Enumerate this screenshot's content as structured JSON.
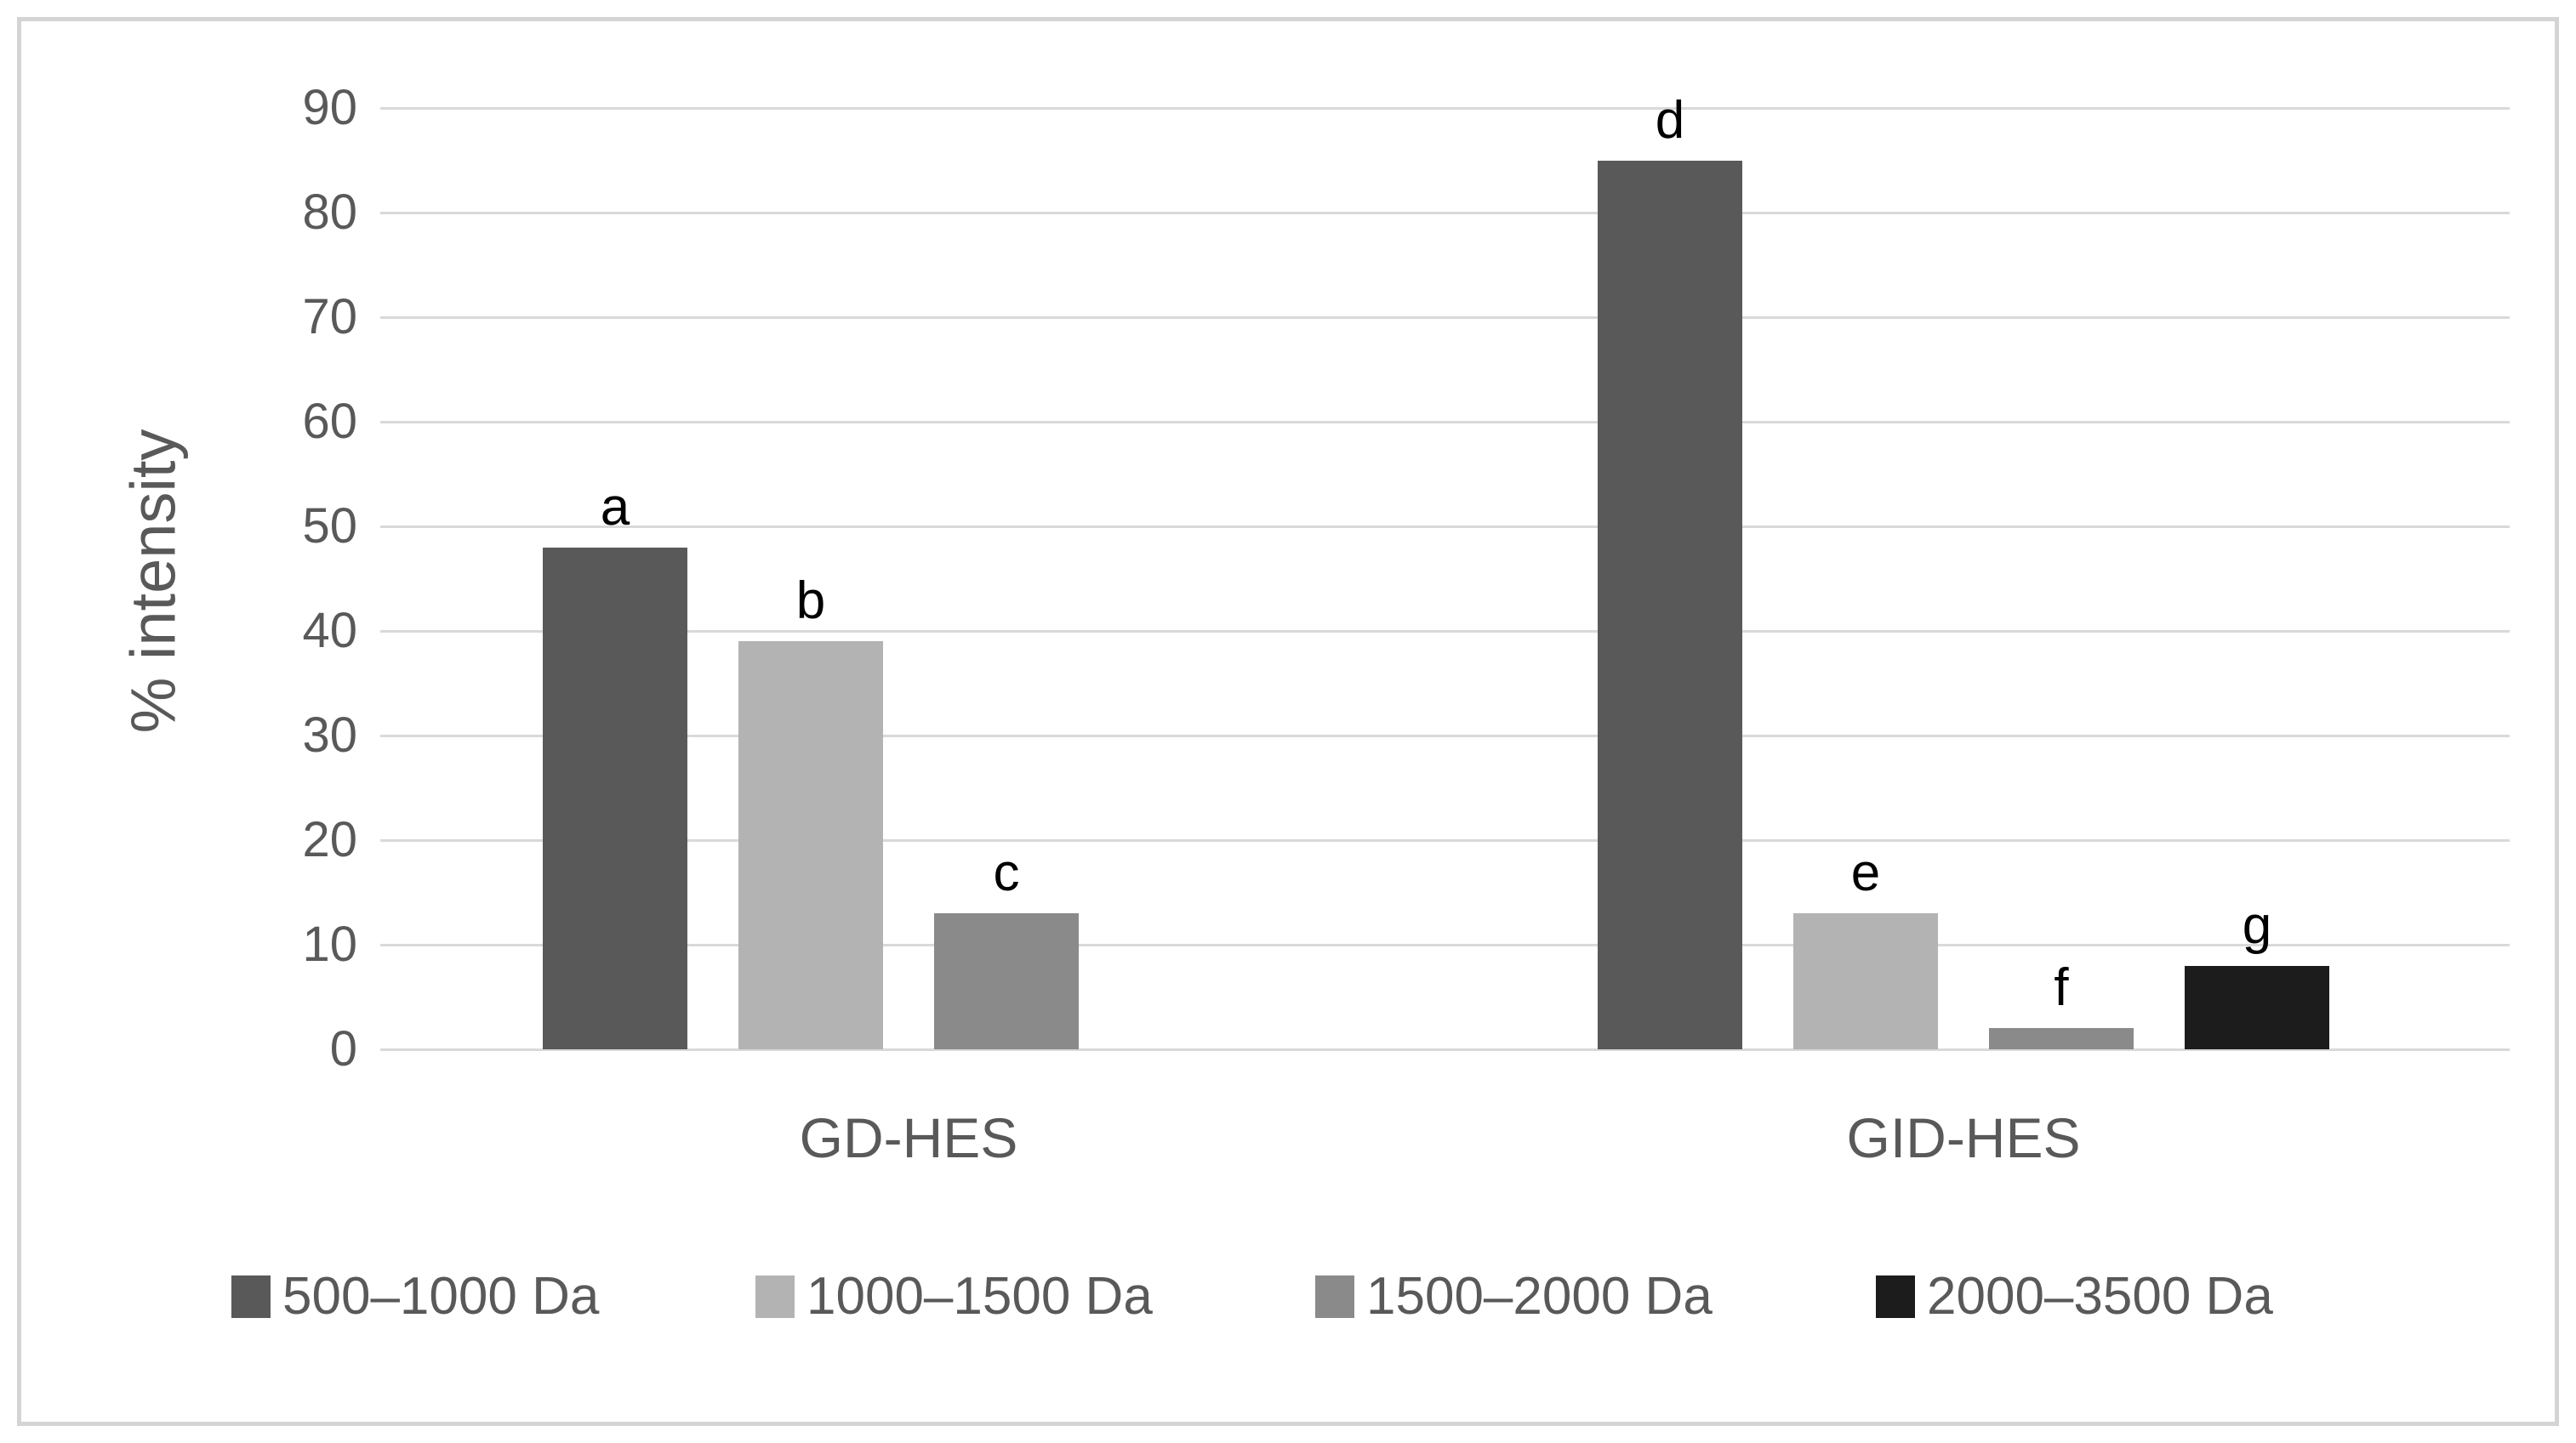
{
  "chart_data": {
    "type": "bar",
    "title": "",
    "xlabel": "",
    "ylabel": "% intensity",
    "ylim": [
      0,
      90
    ],
    "ytick_step": 10,
    "yticks": [
      0,
      10,
      20,
      30,
      40,
      50,
      60,
      70,
      80,
      90
    ],
    "grid": true,
    "legend_position": "bottom",
    "categories": [
      "GD-HES",
      "GID-HES"
    ],
    "series": [
      {
        "name": "500–1000 Da",
        "color": "#595959",
        "values": [
          48,
          85
        ],
        "bar_labels": [
          "a",
          "d"
        ]
      },
      {
        "name": "1000–1500 Da",
        "color": "#b3b3b3",
        "values": [
          39,
          13
        ],
        "bar_labels": [
          "b",
          "e"
        ]
      },
      {
        "name": "1500–2000 Da",
        "color": "#8a8a8a",
        "values": [
          13,
          2
        ],
        "bar_labels": [
          "c",
          "f"
        ]
      },
      {
        "name": "2000–3500 Da",
        "color": "#1c1c1c",
        "values": [
          null,
          8
        ],
        "bar_labels": [
          null,
          "g"
        ]
      }
    ],
    "colors": {
      "gridline": "#d9d9d9",
      "axis_text": "#595959",
      "bar_label_text": "#000000",
      "frame_border": "#d4d4d4"
    }
  }
}
